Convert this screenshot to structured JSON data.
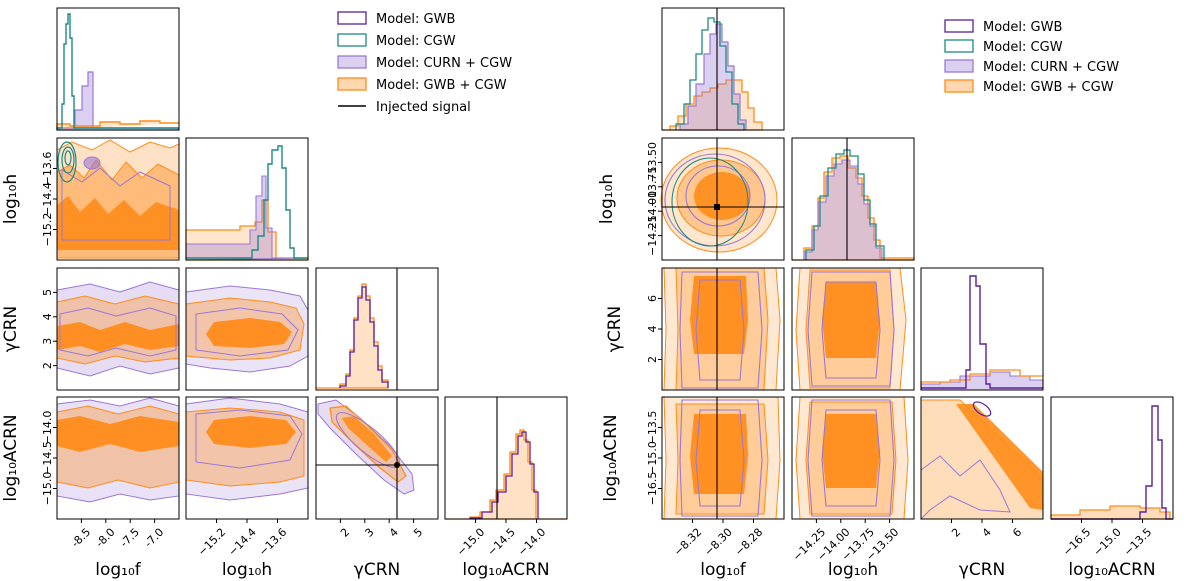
{
  "colors": {
    "gwb": "#5b1f9e",
    "cgw": "#1c8a86",
    "curn": "#9a78d6",
    "gwbcgw": "#ff8c1a",
    "injected": "#000000"
  },
  "chart_data": [
    {
      "type": "corner",
      "id": "left",
      "parameters": [
        "log10_f",
        "log10_h",
        "gamma_CRN",
        "log10_A_CRN"
      ],
      "axis_labels": {
        "x": [
          "log₁₀f",
          "log₁₀h",
          "γCRN",
          "log₁₀ACRN"
        ],
        "y": [
          "log₁₀h",
          "γCRN",
          "log₁₀ACRN"
        ]
      },
      "xticks": [
        [
          "-8.5",
          "-8.0",
          "-7.5",
          "-7.0"
        ],
        [
          "−15.2",
          "−14.4",
          "−13.6"
        ],
        [
          "2",
          "3",
          "4",
          "5"
        ],
        [
          "−15.0",
          "−14.5",
          "−14.0"
        ]
      ],
      "yticks": [
        [
          "−13.6",
          "−14.4",
          "−15.2"
        ],
        [
          "5",
          "4",
          "3",
          "2"
        ],
        [
          "−14.0",
          "−14.5",
          "−15.0"
        ]
      ],
      "ranges": [
        [
          -8.9,
          -7.0
        ],
        [
          -15.6,
          -13.3
        ],
        [
          1.9,
          5.6
        ],
        [
          -15.3,
          -13.8
        ]
      ],
      "injected": {
        "gamma_CRN": 4.33,
        "log10_A_CRN": -14.6
      },
      "legend": [
        "Model: GWB",
        "Model: CGW",
        "Model: CURN + CGW",
        "Model: GWB + CGW",
        "Injected signal"
      ],
      "legend_position": "upper-right"
    },
    {
      "type": "corner",
      "id": "right",
      "parameters": [
        "log10_f",
        "log10_h",
        "gamma_CRN",
        "log10_A_CRN"
      ],
      "axis_labels": {
        "x": [
          "log₁₀f",
          "log₁₀h",
          "γCRN",
          "log₁₀ACRN"
        ],
        "y": [
          "log₁₀h",
          "γCRN",
          "log₁₀ACRN"
        ]
      },
      "xticks": [
        [
          "−8.32",
          "−8.30",
          "−8.28"
        ],
        [
          "−14.25",
          "−14.00",
          "−13.75",
          "−13.50"
        ],
        [
          "2",
          "4",
          "6"
        ],
        [
          "−16.5",
          "−15.0",
          "−13.5"
        ]
      ],
      "yticks": [
        [
          "−13.50",
          "−13.75",
          "−14.00",
          "−14.25"
        ],
        [
          "6",
          "4",
          "2"
        ],
        [
          "−13.5",
          "−15.0",
          "−16.5"
        ]
      ],
      "ranges": [
        [
          -8.33,
          -8.265
        ],
        [
          -14.38,
          -13.38
        ],
        [
          -0.2,
          7.2
        ],
        [
          -17.6,
          -13.0
        ]
      ],
      "injected": {
        "log10_f": -8.3,
        "log10_h": -14.0
      },
      "legend": [
        "Model: GWB",
        "Model: CGW",
        "Model: CURN + CGW",
        "Model: GWB + CGW"
      ],
      "legend_position": "upper-right"
    }
  ]
}
